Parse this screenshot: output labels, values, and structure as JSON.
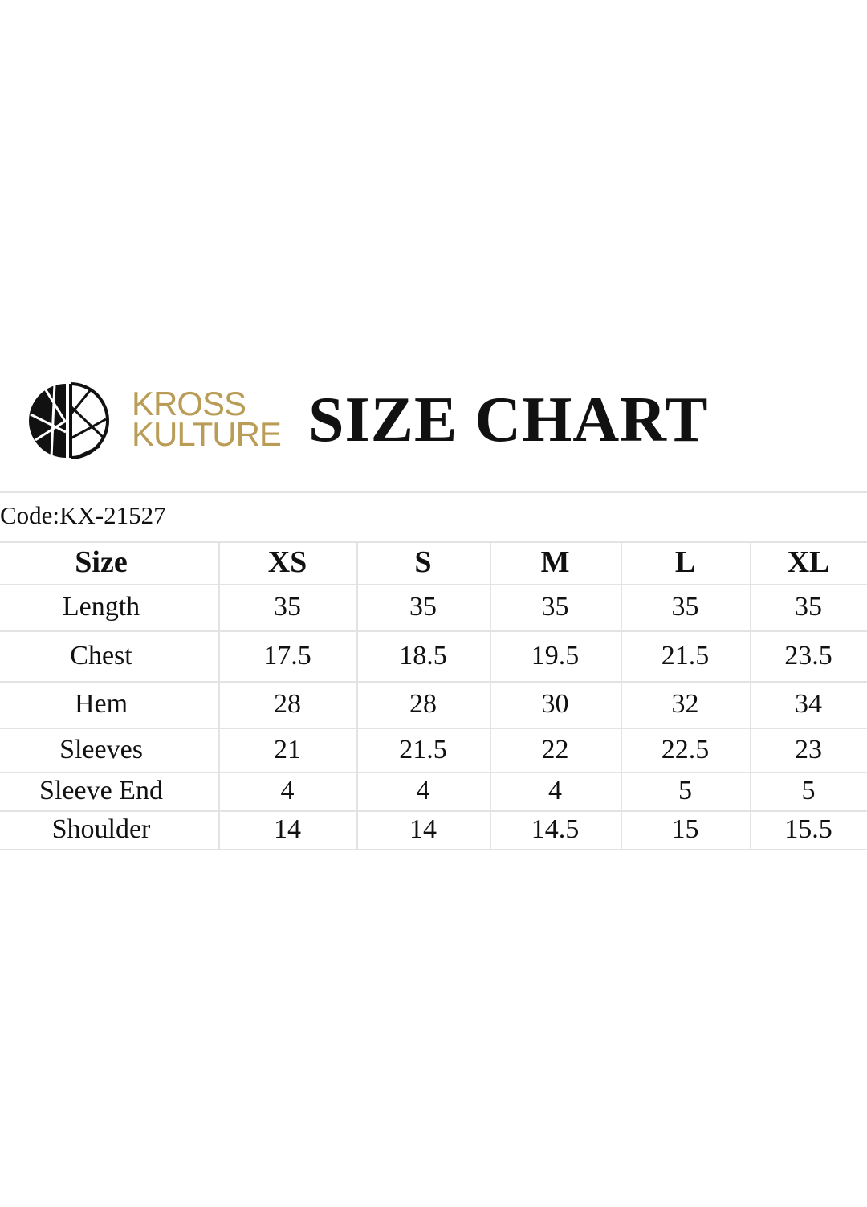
{
  "brand": {
    "name_line1": "KROSS",
    "name_line2": "KULTURE",
    "color": "#b99c55",
    "logo_icon": "kross-kulture-circle-logo"
  },
  "title": "SIZE CHART",
  "code": "Code:KX-21527",
  "table": {
    "columns": [
      "Size",
      "XS",
      "S",
      "M",
      "L",
      "XL"
    ],
    "rows": [
      {
        "label": "Length",
        "values": [
          "35",
          "35",
          "35",
          "35",
          "35"
        ]
      },
      {
        "label": "Chest",
        "values": [
          "17.5",
          "18.5",
          "19.5",
          "21.5",
          "23.5"
        ]
      },
      {
        "label": "Hem",
        "values": [
          "28",
          "28",
          "30",
          "32",
          "34"
        ]
      },
      {
        "label": "Sleeves",
        "values": [
          "21",
          "21.5",
          "22",
          "22.5",
          "23"
        ]
      },
      {
        "label": "Sleeve End",
        "values": [
          "4",
          "4",
          "4",
          "5",
          "5"
        ]
      },
      {
        "label": "Shoulder",
        "values": [
          "14",
          "14",
          "14.5",
          "15",
          "15.5"
        ]
      }
    ]
  }
}
